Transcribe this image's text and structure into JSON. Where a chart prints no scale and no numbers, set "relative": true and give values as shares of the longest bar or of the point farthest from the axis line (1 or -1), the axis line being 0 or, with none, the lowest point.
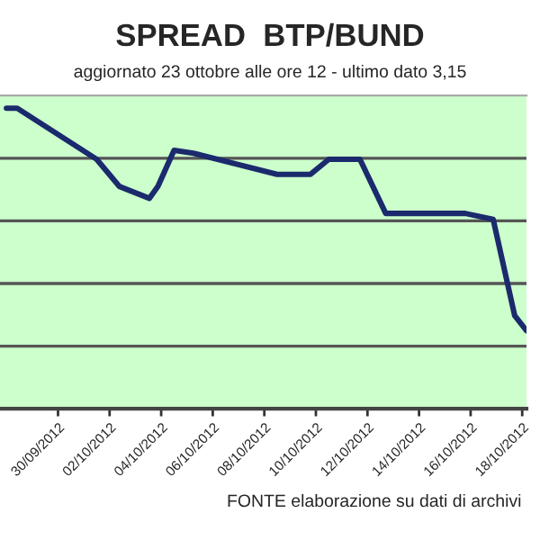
{
  "chart_data": {
    "type": "line",
    "title": "SPREAD  BTP/BUND",
    "subtitle": "aggiornato 23 ottobre alle ore 12 - ultimo dato 3,15",
    "annotations": [
      "FONTE elaborazione su dati di archivi"
    ],
    "relative": true,
    "grid": "y",
    "x": [
      "2012-09-28T00:00",
      "2012-09-28T10:00",
      "2012-10-01T12:00",
      "2012-10-02T09:00",
      "2012-10-03T13:00",
      "2012-10-03T21:00",
      "2012-10-04T12:00",
      "2012-10-05T06:00",
      "2012-10-08T12:00",
      "2012-10-09T19:00",
      "2012-10-10T12:00",
      "2012-10-11T17:00",
      "2012-10-12T17:00",
      "2012-10-15T19:00",
      "2012-10-16T21:00",
      "2012-10-17T17:00",
      "2012-10-18T04:00"
    ],
    "series": [
      {
        "color": "#1a2a6c",
        "values": [
          1.0,
          1.0,
          0.83,
          0.74,
          0.7,
          0.74,
          0.86,
          0.85,
          0.78,
          0.78,
          0.83,
          0.83,
          0.65,
          0.65,
          0.63,
          0.31,
          0.26
        ]
      }
    ],
    "xlim": [
      "2012-09-27T18:00",
      "2012-10-18T04:00"
    ],
    "xticks": [
      {
        "value": "2012-09-30",
        "label": "30/09/2012"
      },
      {
        "value": "2012-10-02",
        "label": "02/10/2012"
      },
      {
        "value": "2012-10-04",
        "label": "04/10/2012"
      },
      {
        "value": "2012-10-06",
        "label": "06/10/2012"
      },
      {
        "value": "2012-10-08",
        "label": "08/10/2012"
      },
      {
        "value": "2012-10-10",
        "label": "10/10/2012"
      },
      {
        "value": "2012-10-12",
        "label": "12/10/2012"
      },
      {
        "value": "2012-10-14",
        "label": "14/10/2012"
      },
      {
        "value": "2012-10-16",
        "label": "16/10/2012"
      },
      {
        "value": "2012-10-18",
        "label": "18/10/2012"
      }
    ]
  }
}
